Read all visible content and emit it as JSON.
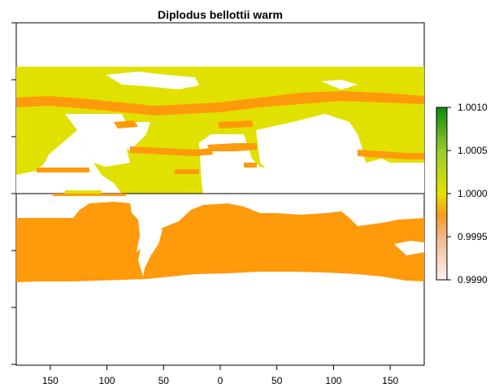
{
  "title": "Diplodus bellottii warm",
  "map": {
    "x_tick_labels": [
      "150",
      "100",
      "50",
      "0",
      "50",
      "100",
      "150"
    ],
    "x_tick_values": [
      -150,
      -100,
      -50,
      0,
      50,
      100,
      150
    ],
    "xlim": [
      -180,
      180
    ],
    "colors": {
      "water": "#ffffff",
      "north_land": "#e1e100",
      "south_land": "#ff9a0a",
      "coast_band": "#ff9a0a",
      "frame": "#000000"
    }
  },
  "legend": {
    "ticks": [
      "1.0010",
      "1.0005",
      "1.0000",
      "0.9995",
      "0.9990"
    ],
    "tick_values": [
      1.001,
      1.0005,
      1.0,
      0.9995,
      0.999
    ],
    "range": [
      0.999,
      1.001
    ],
    "gradient_stops": [
      {
        "value": 0.999,
        "color": "#fdf0f0"
      },
      {
        "value": 0.9995,
        "color": "#f0b888"
      },
      {
        "value": 0.99975,
        "color": "#f59a20"
      },
      {
        "value": 1.0,
        "color": "#e6e100"
      },
      {
        "value": 1.0005,
        "color": "#96cc2c"
      },
      {
        "value": 1.001,
        "color": "#0f8a0f"
      }
    ]
  }
}
